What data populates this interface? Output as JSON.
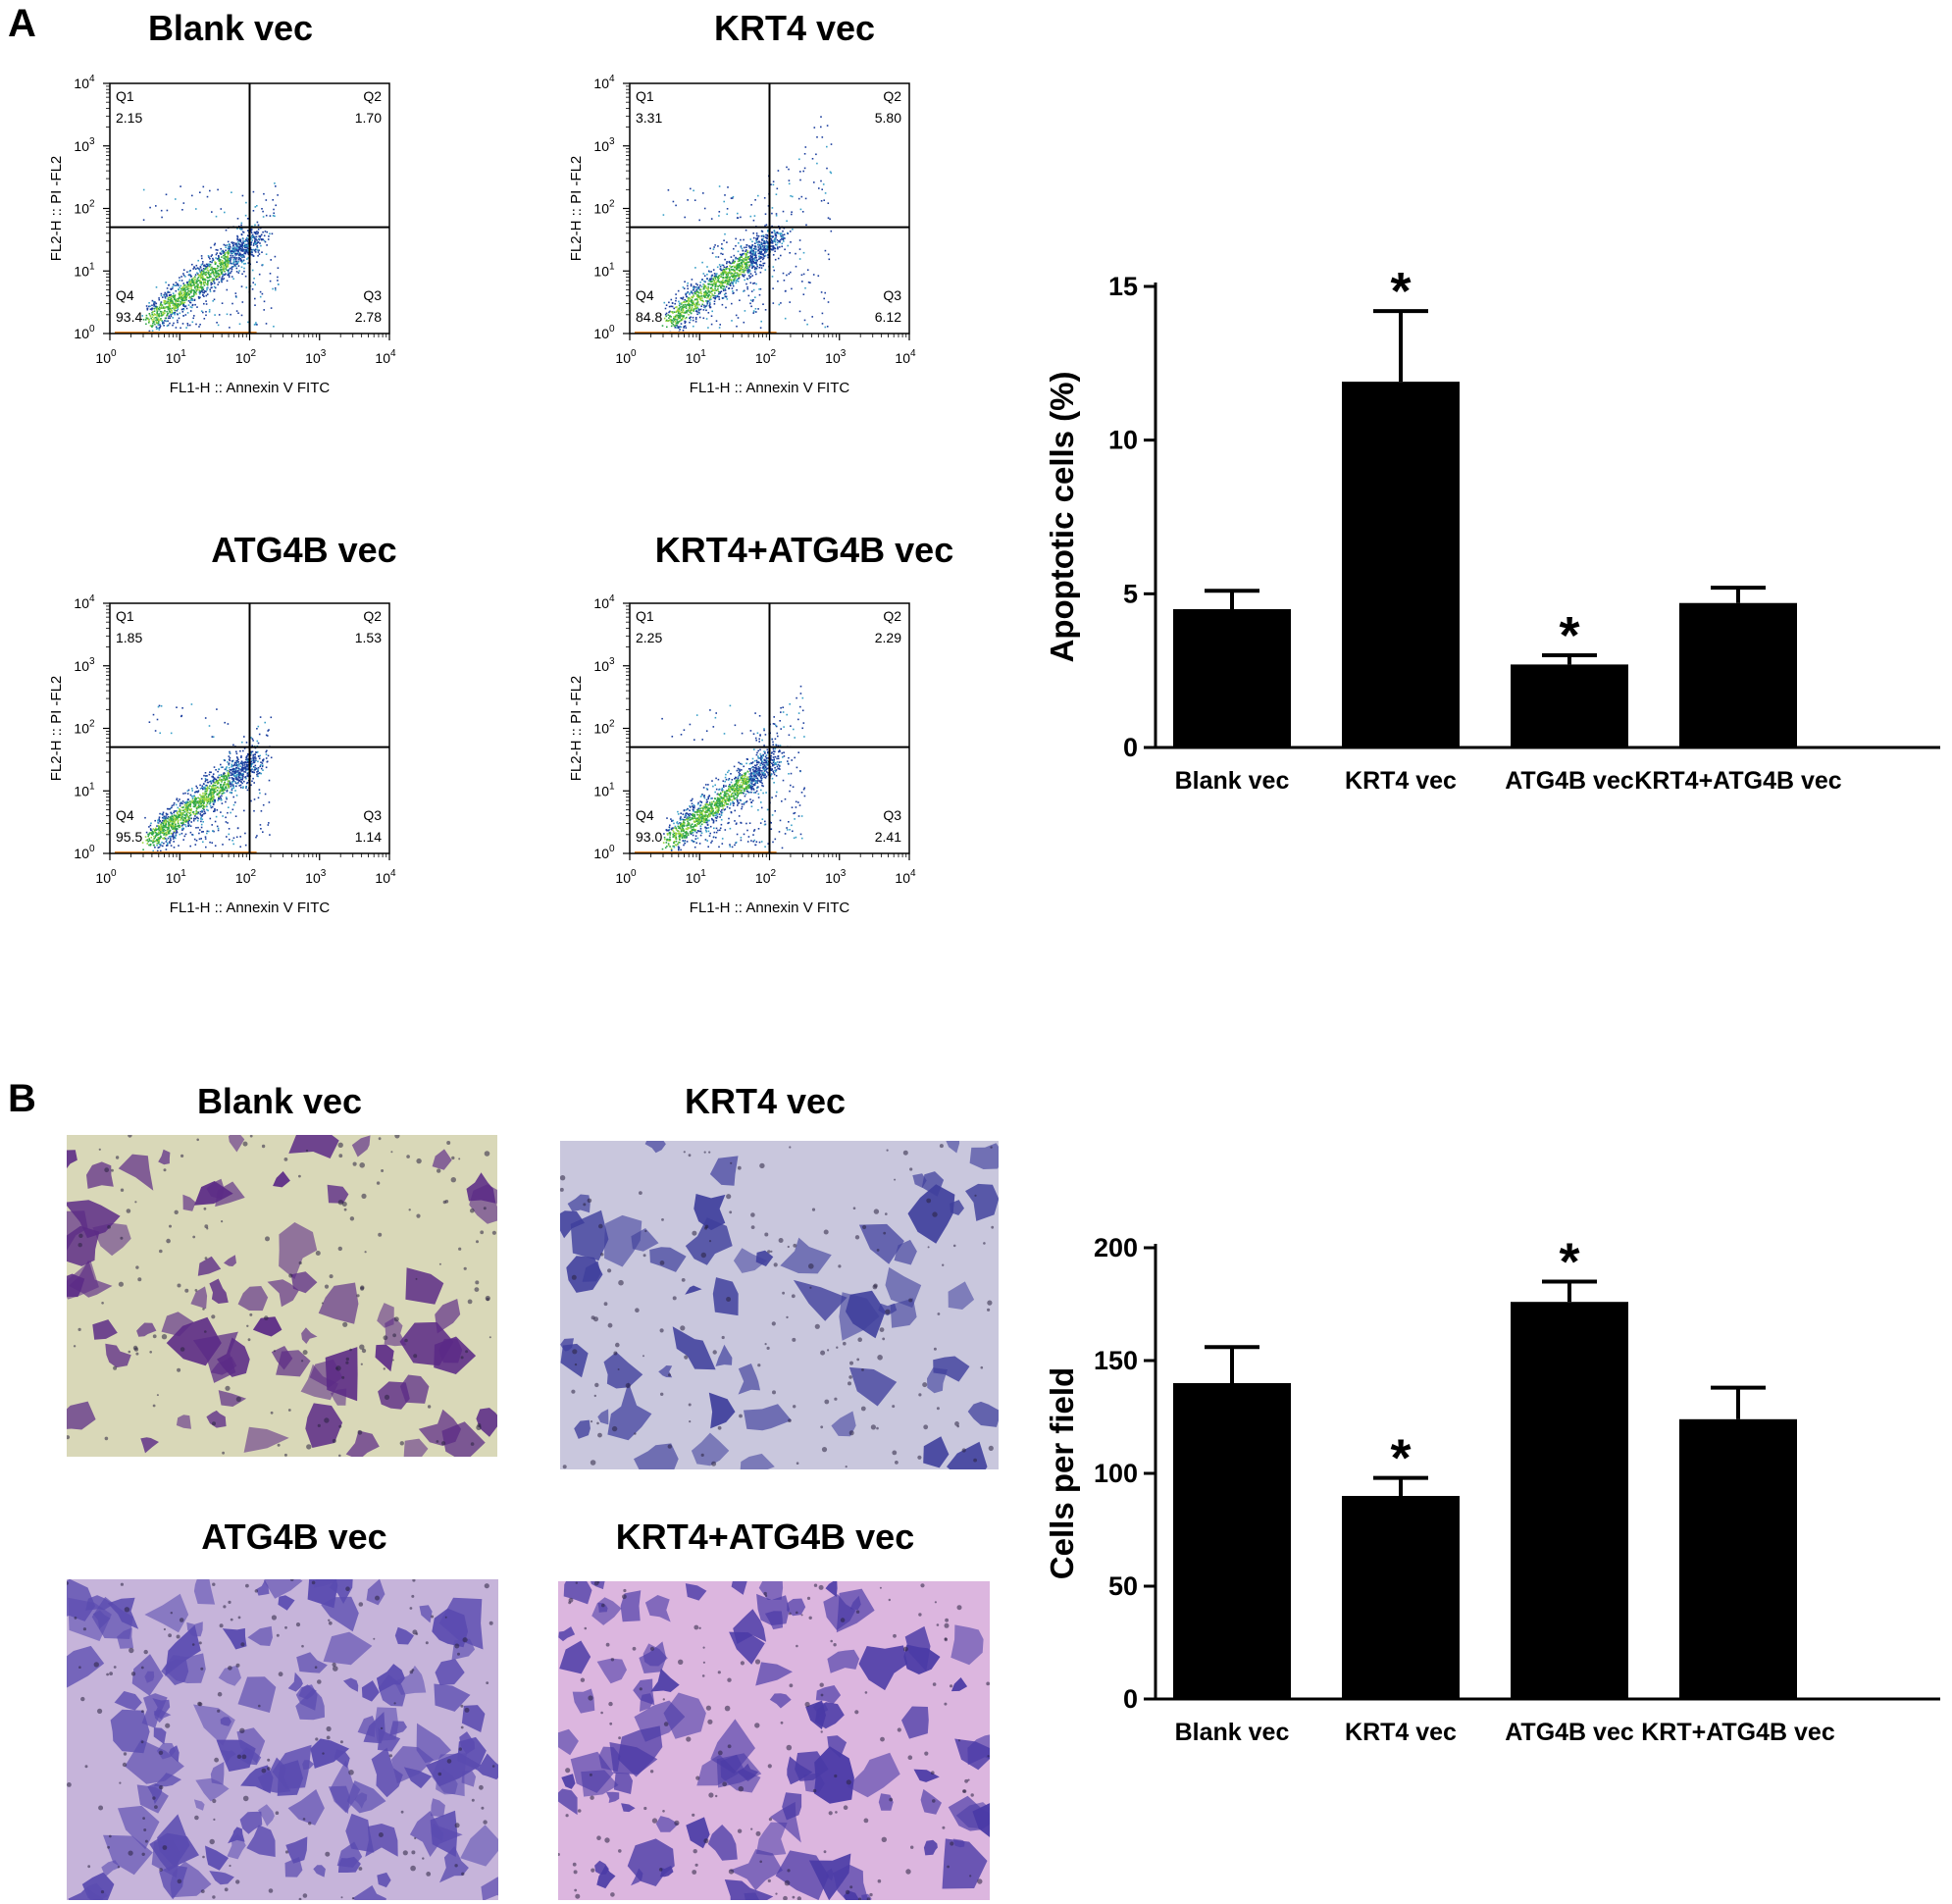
{
  "panel_a": {
    "letter": "A",
    "flow_plots": [
      {
        "title": "Blank vec",
        "quadrants": {
          "q1": {
            "label": "Q1",
            "value": "2.15"
          },
          "q2": {
            "label": "Q2",
            "value": "1.70"
          },
          "q3": {
            "label": "Q3",
            "value": "2.78"
          },
          "q4": {
            "label": "Q4",
            "value": "93.4"
          }
        }
      },
      {
        "title": "KRT4 vec",
        "quadrants": {
          "q1": {
            "label": "Q1",
            "value": "3.31"
          },
          "q2": {
            "label": "Q2",
            "value": "5.80"
          },
          "q3": {
            "label": "Q3",
            "value": "6.12"
          },
          "q4": {
            "label": "Q4",
            "value": "84.8"
          }
        }
      },
      {
        "title": "ATG4B vec",
        "quadrants": {
          "q1": {
            "label": "Q1",
            "value": "1.85"
          },
          "q2": {
            "label": "Q2",
            "value": "1.53"
          },
          "q3": {
            "label": "Q3",
            "value": "1.14"
          },
          "q4": {
            "label": "Q4",
            "value": "95.5"
          }
        }
      },
      {
        "title": "KRT4+ATG4B vec",
        "quadrants": {
          "q1": {
            "label": "Q1",
            "value": "2.25"
          },
          "q2": {
            "label": "Q2",
            "value": "2.29"
          },
          "q3": {
            "label": "Q3",
            "value": "2.41"
          },
          "q4": {
            "label": "Q4",
            "value": "93.0"
          }
        }
      }
    ],
    "flow_axes": {
      "xlabel": "FL1-H :: Annexin V FITC",
      "ylabel": "FL2-H :: PI -FL2",
      "tick_base": "10",
      "tick_exponents": [
        "0",
        "1",
        "2",
        "3",
        "4"
      ],
      "x_gate_decade": 2,
      "y_gate_decade": 1.7
    }
  },
  "panel_b": {
    "letter": "B",
    "micrographs": [
      {
        "title": "Blank vec",
        "base_color": "#d9d8b8",
        "stain_color": "#5b2a86"
      },
      {
        "title": "KRT4 vec",
        "base_color": "#c9c7dd",
        "stain_color": "#3f3f9c"
      },
      {
        "title": "ATG4B vec",
        "base_color": "#c6b4da",
        "stain_color": "#5a4bb0"
      },
      {
        "title": "KRT4+ATG4B vec",
        "base_color": "#dcb6df",
        "stain_color": "#4a3aa6"
      }
    ]
  },
  "chart_data": [
    {
      "type": "bar",
      "title": "",
      "xlabel": "",
      "ylabel": "Apoptotic cells (%)",
      "categories": [
        "Blank vec",
        "KRT4 vec",
        "ATG4B vec",
        "KRT4+ATG4B vec"
      ],
      "values": [
        4.5,
        11.9,
        2.7,
        4.7
      ],
      "errors": [
        0.6,
        2.3,
        0.3,
        0.5
      ],
      "significance": [
        "",
        "*",
        "*",
        ""
      ],
      "ylim": [
        0,
        15
      ],
      "yticks": [
        "0",
        "5",
        "10",
        "15"
      ],
      "bar_color": "#000000"
    },
    {
      "type": "bar",
      "title": "",
      "xlabel": "",
      "ylabel": "Cells per field",
      "categories": [
        "Blank vec",
        "KRT4 vec",
        "ATG4B vec",
        "KRT+ATG4B vec"
      ],
      "values": [
        140,
        90,
        176,
        124
      ],
      "errors": [
        16,
        8,
        9,
        14
      ],
      "significance": [
        "",
        "*",
        "*",
        ""
      ],
      "ylim": [
        0,
        200
      ],
      "yticks": [
        "0",
        "50",
        "100",
        "150",
        "200"
      ],
      "bar_color": "#000000"
    }
  ]
}
